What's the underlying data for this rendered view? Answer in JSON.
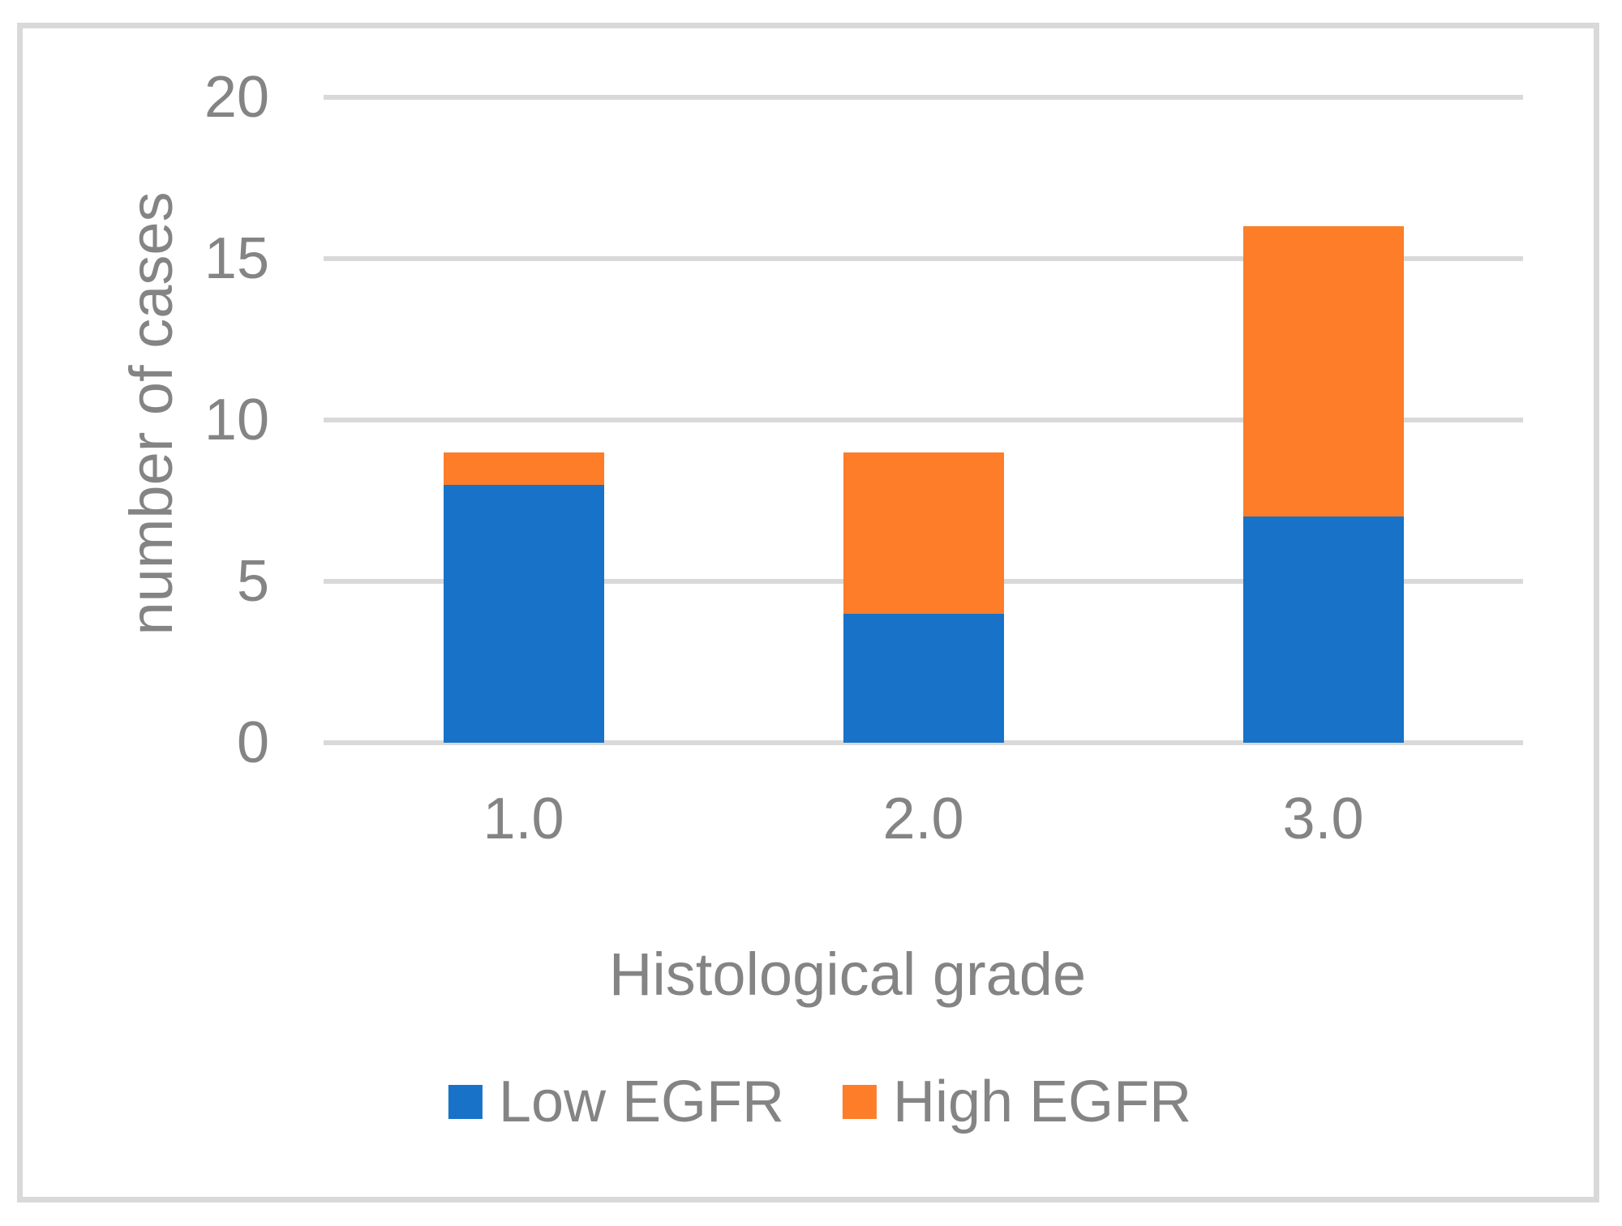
{
  "chart_data": {
    "type": "bar",
    "stacked": true,
    "categories": [
      "1.0",
      "2.0",
      "3.0"
    ],
    "series": [
      {
        "name": "Low EGFR",
        "color": "#1772c8",
        "values": [
          8,
          4,
          7
        ]
      },
      {
        "name": "High EGFR",
        "color": "#fd7d28",
        "values": [
          1,
          5,
          9
        ]
      }
    ],
    "xlabel": "Histological grade",
    "ylabel": "number of cases",
    "yticks": [
      0,
      5,
      10,
      15,
      20
    ],
    "ylim": [
      0,
      20
    ],
    "grid": true,
    "legend_position": "bottom"
  },
  "styles": {
    "grid_color": "#d9d9d9",
    "frame_color": "#d9d9d9",
    "text_color": "#848484",
    "background": "#ffffff"
  }
}
